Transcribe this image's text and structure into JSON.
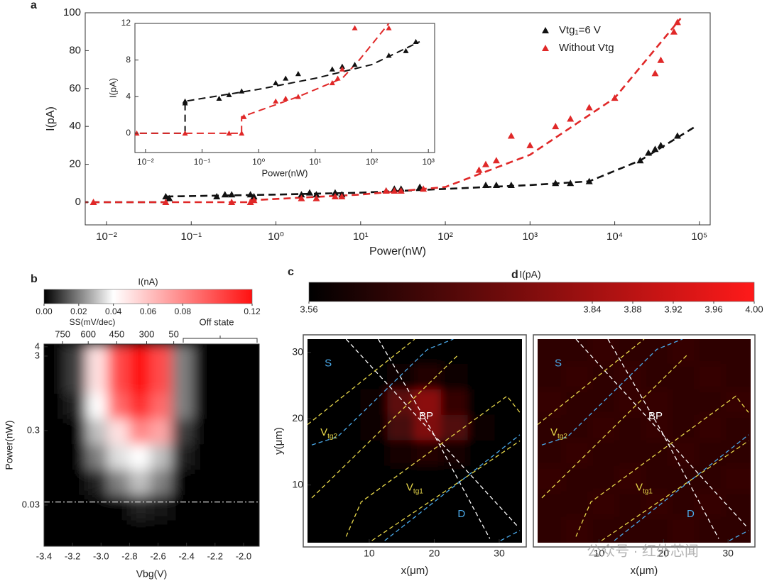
{
  "chart_data": [
    {
      "type": "scatter",
      "panel": "a",
      "xlabel": "Power(nW)",
      "ylabel": "I(pA)",
      "xscale": "log",
      "xlim": [
        0.0056,
        134000
      ],
      "ylim": [
        -12,
        100
      ],
      "xticks": [
        {
          "value": 0.01,
          "label": "10⁻²"
        },
        {
          "value": 0.1,
          "label": "10⁻¹"
        },
        {
          "value": 1,
          "label": "10⁰"
        },
        {
          "value": 10,
          "label": "10¹"
        },
        {
          "value": 100,
          "label": "10²"
        },
        {
          "value": 1000,
          "label": "10³"
        },
        {
          "value": 10000,
          "label": "10⁴"
        },
        {
          "value": 100000,
          "label": "10⁵"
        }
      ],
      "yticks": [
        0,
        20,
        40,
        60,
        80,
        100
      ],
      "legend": "upper right",
      "series": [
        {
          "name": "Vtg₁=6 V",
          "color": "#111111",
          "x": [
            0.05,
            0.055,
            0.2,
            0.25,
            0.3,
            0.5,
            0.55,
            2,
            2.5,
            3,
            5,
            6,
            20,
            25,
            30,
            50,
            300,
            400,
            600,
            2000,
            3000,
            5000,
            20000,
            25000,
            30000,
            35000,
            55000
          ],
          "values": [
            3,
            2,
            3,
            4,
            4,
            4,
            3,
            4,
            5,
            4,
            5,
            4,
            6,
            7,
            7,
            8,
            9,
            9,
            9,
            10,
            10,
            11,
            22,
            26,
            28,
            30,
            35
          ]
        },
        {
          "name": "Without Vtg",
          "color": "#e02828",
          "x": [
            0.007,
            0.05,
            0.3,
            0.5,
            0.55,
            2,
            3,
            5,
            6,
            20,
            25,
            30,
            55,
            250,
            300,
            400,
            600,
            1000,
            2000,
            3000,
            5000,
            10000,
            30000,
            35000,
            50000,
            55000
          ],
          "values": [
            0,
            0,
            0,
            0,
            1,
            2,
            2,
            3,
            3,
            6,
            6,
            6,
            7,
            17,
            20,
            22,
            35,
            30,
            40,
            44,
            50,
            55,
            68,
            75,
            90,
            95
          ]
        }
      ],
      "fits": [
        {
          "color": "#111111",
          "x": [
            0.005,
            0.05,
            0.05,
            1,
            10,
            100,
            1000,
            5000,
            20000,
            90000
          ],
          "values": [
            0,
            0,
            3,
            4,
            5,
            7,
            9,
            11,
            22,
            40
          ]
        },
        {
          "color": "#e02828",
          "x": [
            0.005,
            0.5,
            0.5,
            10,
            100,
            1000,
            10000,
            60000
          ],
          "values": [
            0,
            0,
            1,
            4,
            8,
            25,
            55,
            97
          ]
        }
      ]
    },
    {
      "type": "scatter",
      "xlabel": "Power(nW)",
      "ylabel": "I(pA)",
      "xscale": "log",
      "xlim": [
        0.0065,
        1290
      ],
      "ylim": [
        -2.1,
        12
      ],
      "xticks": [
        {
          "value": 0.01,
          "label": "10⁻²"
        },
        {
          "value": 0.1,
          "label": "10⁻¹"
        },
        {
          "value": 1,
          "label": "10⁰"
        },
        {
          "value": 10,
          "label": "10¹"
        },
        {
          "value": 100,
          "label": "10²"
        },
        {
          "value": 1000,
          "label": "10³"
        }
      ],
      "yticks": [
        0,
        4,
        8,
        12
      ],
      "series": [
        {
          "color": "#111111",
          "x": [
            0.05,
            0.05,
            0.2,
            0.3,
            0.5,
            2,
            3,
            5,
            20,
            30,
            50,
            200,
            400,
            600
          ],
          "values": [
            3.5,
            3.3,
            3.8,
            4.2,
            4.6,
            5.5,
            6,
            6.5,
            7,
            7.3,
            7.5,
            8.5,
            9,
            10
          ]
        },
        {
          "color": "#e02828",
          "x": [
            0.007,
            0.05,
            0.3,
            0.5,
            0.55,
            2,
            3,
            5,
            20,
            25,
            30,
            50,
            200
          ],
          "values": [
            0,
            0,
            0,
            0,
            1.8,
            3.5,
            3.8,
            4,
            5.5,
            6,
            7,
            11.5,
            11.5
          ]
        }
      ],
      "fits": [
        {
          "color": "#111111",
          "x": [
            0.005,
            0.05,
            0.05,
            1,
            10,
            100,
            700
          ],
          "values": [
            0,
            0,
            3.5,
            4.8,
            6,
            7.5,
            10
          ]
        },
        {
          "color": "#e02828",
          "x": [
            0.005,
            0.5,
            0.5,
            5,
            30,
            60,
            200
          ],
          "values": [
            0,
            0,
            1.8,
            4,
            6,
            8,
            12
          ]
        }
      ]
    },
    {
      "type": "heatmap",
      "panel": "b",
      "xlabel": "Vbg(V)",
      "ylabel": "Power(nW)",
      "yscale": "log",
      "xlim": [
        -3.4,
        -1.89
      ],
      "ylim": [
        0.0084,
        4.35
      ],
      "xticks": [
        -3.4,
        -3.2,
        {
          "value": -3,
          "label": "-3.0"
        },
        -2.8,
        -2.6,
        -2.4,
        -2.2,
        {
          "value": -2,
          "label": "-2.0"
        }
      ],
      "yticks": [
        0.03,
        0.3,
        3,
        4
      ],
      "x2label": "SS(mV/dec)",
      "x2ticks": [
        {
          "value": -3.27,
          "label": "750"
        },
        {
          "value": -3.09,
          "label": "600"
        },
        {
          "value": -2.89,
          "label": "450"
        },
        {
          "value": -2.68,
          "label": "300"
        },
        {
          "value": -2.49,
          "label": "50"
        }
      ],
      "x2note": "Off state",
      "hline": 0.033,
      "colorbar_label": "I(nA)",
      "clim": [
        0,
        0.12
      ],
      "cticks": [
        {
          "value": 0,
          "label": "0.00"
        },
        0.02,
        0.04,
        0.06,
        0.08,
        0.12
      ],
      "cmap": [
        [
          0,
          "#000000"
        ],
        [
          0.04,
          "#ffffff"
        ],
        [
          0.12,
          "#ff1010"
        ]
      ],
      "x": [
        -3.325,
        -3.175,
        -3.025,
        -2.875,
        -2.725,
        -2.575,
        -2.425,
        -2.275,
        -2.125,
        -1.975
      ],
      "y": [
        2.94,
        1.35,
        0.62,
        0.283,
        0.13,
        0.059,
        0.027,
        0.0124
      ],
      "z": [
        [
          0,
          0.01,
          0.05,
          0.1,
          0.12,
          0.1,
          0.02,
          0,
          0,
          0
        ],
        [
          0,
          0.01,
          0.05,
          0.1,
          0.12,
          0.1,
          0.02,
          0,
          0,
          0
        ],
        [
          0,
          0.005,
          0.04,
          0.09,
          0.11,
          0.09,
          0.02,
          0,
          0,
          0
        ],
        [
          0,
          0,
          0.03,
          0.05,
          0.08,
          0.07,
          0.01,
          0,
          0,
          0
        ],
        [
          0,
          0,
          0.02,
          0.035,
          0.04,
          0.03,
          0.005,
          0,
          0,
          0
        ],
        [
          0,
          0,
          0.005,
          0.02,
          0.03,
          0.02,
          0,
          0,
          0,
          0
        ],
        [
          0,
          0,
          0,
          0,
          0.005,
          0.003,
          0,
          0,
          0,
          0
        ],
        [
          0,
          0,
          0,
          0,
          0,
          0,
          0,
          0,
          0,
          0
        ]
      ]
    },
    {
      "type": "heatmap",
      "panel": "c",
      "xlabel": "x(μm)",
      "ylabel": "y(μm)",
      "xlim": [
        0.5,
        33.5
      ],
      "ylim": [
        1.3,
        32
      ],
      "xticks": [
        10,
        20,
        30
      ],
      "yticks": [
        10,
        20,
        30
      ],
      "colorbar_label": "I(pA)",
      "clim": [
        3.56,
        4.0
      ],
      "cticks": [
        3.56,
        3.84,
        3.88,
        3.92,
        3.96,
        {
          "value": 4,
          "label": "4.00"
        }
      ],
      "cmap": [
        [
          3.56,
          "#000000"
        ],
        [
          4.0,
          "#ff1a1a"
        ]
      ],
      "x": [
        2.56,
        6.69,
        10.81,
        14.94,
        19.06,
        23.19,
        27.31,
        31.44
      ],
      "y": [
        30.08,
        26.24,
        22.39,
        18.55,
        14.71,
        10.86,
        7.02,
        3.17
      ],
      "z": [
        [
          3.57,
          3.57,
          3.57,
          3.57,
          3.57,
          3.57,
          3.57,
          3.57
        ],
        [
          3.57,
          3.57,
          3.57,
          3.58,
          3.62,
          3.58,
          3.57,
          3.57
        ],
        [
          3.57,
          3.57,
          3.58,
          3.72,
          3.8,
          3.65,
          3.57,
          3.57
        ],
        [
          3.57,
          3.57,
          3.58,
          3.68,
          3.78,
          3.7,
          3.58,
          3.57
        ],
        [
          3.57,
          3.57,
          3.57,
          3.6,
          3.62,
          3.6,
          3.57,
          3.57
        ],
        [
          3.57,
          3.57,
          3.57,
          3.57,
          3.57,
          3.57,
          3.57,
          3.57
        ],
        [
          3.57,
          3.57,
          3.57,
          3.57,
          3.57,
          3.57,
          3.57,
          3.57
        ],
        [
          3.57,
          3.57,
          3.57,
          3.57,
          3.57,
          3.57,
          3.57,
          3.57
        ]
      ],
      "annotations": [
        {
          "text": "S",
          "color": "#4aa8e8"
        },
        {
          "text": "V",
          "sub": "tg2",
          "color": "#e8d84a"
        },
        {
          "text": "BP",
          "color": "#ffffff"
        },
        {
          "text": "V",
          "sub": "tg1",
          "color": "#e8d84a"
        },
        {
          "text": "D",
          "color": "#4aa8e8"
        }
      ]
    },
    {
      "type": "heatmap",
      "panel": "d",
      "xlabel": "x(μm)",
      "xlim": [
        0.5,
        33.5
      ],
      "ylim": [
        1.3,
        32
      ],
      "xticks": [
        10,
        20,
        30
      ],
      "clim": [
        3.56,
        4.0
      ],
      "cmap": [
        [
          3.56,
          "#000000"
        ],
        [
          4.0,
          "#ff1a1a"
        ]
      ],
      "x": [
        2.56,
        6.69,
        10.81,
        14.94,
        19.06,
        23.19,
        27.31,
        31.44
      ],
      "y": [
        30.08,
        26.24,
        22.39,
        18.55,
        14.71,
        10.86,
        7.02,
        3.17
      ],
      "z": [
        [
          3.64,
          3.64,
          3.65,
          3.64,
          3.64,
          3.65,
          3.64,
          3.64
        ],
        [
          3.64,
          3.65,
          3.64,
          3.65,
          3.64,
          3.64,
          3.65,
          3.64
        ],
        [
          3.65,
          3.64,
          3.64,
          3.65,
          3.65,
          3.64,
          3.64,
          3.65
        ],
        [
          3.64,
          3.64,
          3.65,
          3.64,
          3.65,
          3.64,
          3.65,
          3.64
        ],
        [
          3.64,
          3.65,
          3.64,
          3.64,
          3.64,
          3.65,
          3.64,
          3.64
        ],
        [
          3.65,
          3.64,
          3.64,
          3.65,
          3.64,
          3.64,
          3.64,
          3.65
        ],
        [
          3.64,
          3.64,
          3.65,
          3.64,
          3.65,
          3.64,
          3.65,
          3.64
        ],
        [
          3.64,
          3.65,
          3.64,
          3.64,
          3.64,
          3.65,
          3.64,
          3.64
        ]
      ],
      "annotations": [
        {
          "text": "S",
          "color": "#4aa8e8"
        },
        {
          "text": "V",
          "sub": "tg2",
          "color": "#e8d84a"
        },
        {
          "text": "BP",
          "color": "#ffffff"
        },
        {
          "text": "V",
          "sub": "tg1",
          "color": "#e8d84a"
        },
        {
          "text": "D",
          "color": "#4aa8e8"
        }
      ]
    }
  ],
  "watermark": "公众号 · 红外芯闻"
}
